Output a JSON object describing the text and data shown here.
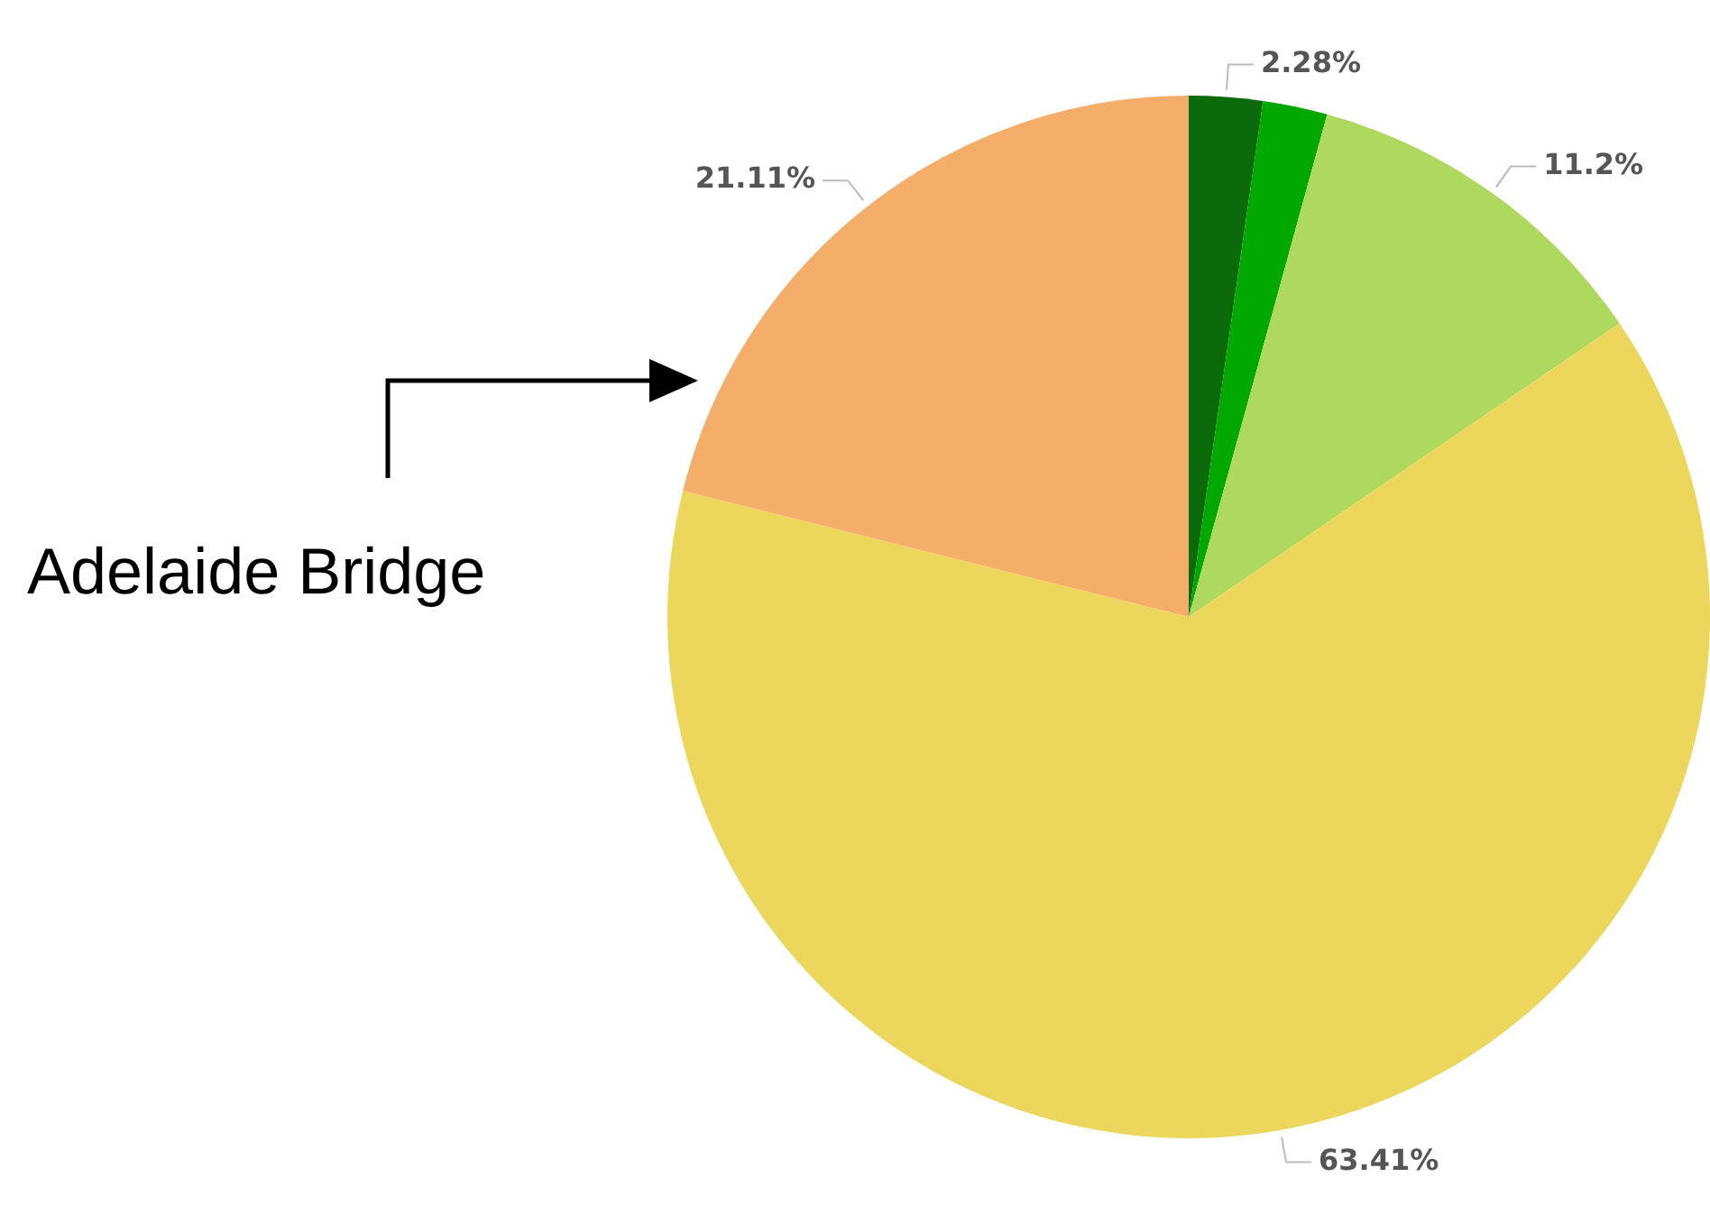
{
  "chart_data": {
    "type": "pie",
    "categories": [
      null,
      null,
      null,
      null,
      null
    ],
    "values": [
      2.28,
      2.0,
      11.2,
      63.41,
      21.11
    ],
    "colors": [
      "#0b6b0b",
      "#00a800",
      "#aed95e",
      "#ecd65c",
      "#f5ad6a"
    ],
    "value_labels": [
      "2.28%",
      null,
      "11.2%",
      "63.41%",
      "21.11%"
    ],
    "annotations": [
      "Adelaide Bridge"
    ],
    "legend": false
  }
}
